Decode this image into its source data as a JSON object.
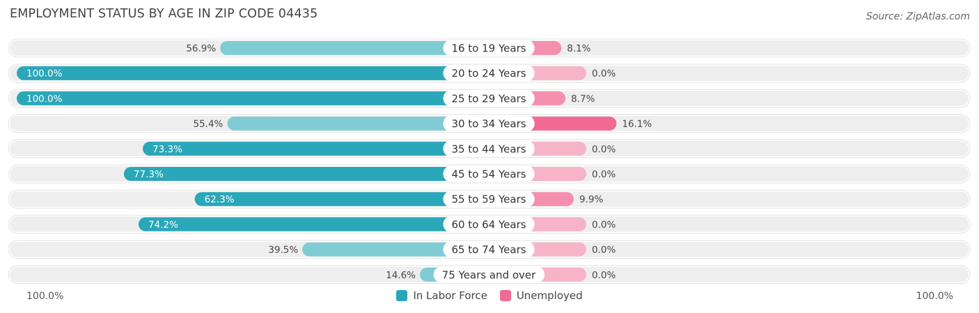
{
  "title": "EMPLOYMENT STATUS BY AGE IN ZIP CODE 04435",
  "source": "Source: ZipAtlas.com",
  "colors": {
    "in_labor_force_strong": "#2aa7b8",
    "in_labor_force_light": "#7fccd5",
    "unemployed_strong": "#f06a93",
    "unemployed_light": "#f7b3c7",
    "track": "#eeeeee"
  },
  "chart_data": {
    "type": "bar",
    "orientation": "diverging-horizontal",
    "categories": [
      "16 to 19 Years",
      "20 to 24 Years",
      "25 to 29 Years",
      "30 to 34 Years",
      "35 to 44 Years",
      "45 to 54 Years",
      "55 to 59 Years",
      "60 to 64 Years",
      "65 to 74 Years",
      "75 Years and over"
    ],
    "series": [
      {
        "name": "In Labor Force",
        "values": [
          56.9,
          100.0,
          100.0,
          55.4,
          73.3,
          77.3,
          62.3,
          74.2,
          39.5,
          14.6
        ],
        "labels": [
          "56.9%",
          "100.0%",
          "100.0%",
          "55.4%",
          "73.3%",
          "77.3%",
          "62.3%",
          "74.2%",
          "39.5%",
          "14.6%"
        ]
      },
      {
        "name": "Unemployed",
        "values": [
          8.1,
          0.0,
          8.7,
          16.1,
          0.0,
          0.0,
          9.9,
          0.0,
          0.0,
          0.0
        ],
        "labels": [
          "8.1%",
          "0.0%",
          "8.7%",
          "16.1%",
          "0.0%",
          "0.0%",
          "9.9%",
          "0.0%",
          "0.0%",
          "0.0%"
        ]
      }
    ],
    "xlim_left": [
      0,
      100
    ],
    "axis_labels": {
      "left": "100.0%",
      "right": "100.0%"
    },
    "legend_position": "bottom-center"
  }
}
